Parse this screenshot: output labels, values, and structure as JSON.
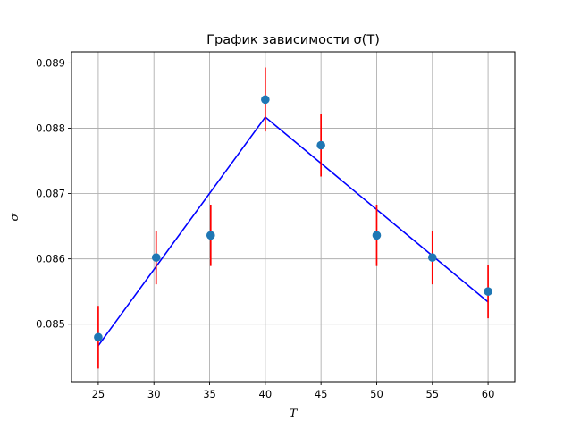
{
  "chart_data": {
    "type": "scatter",
    "title": "График зависимости σ(T)",
    "xlabel": "T",
    "ylabel": "σ",
    "xlim": [
      22.6,
      62.4
    ],
    "ylim": [
      0.08412,
      0.08917
    ],
    "x_ticks": [
      25,
      30,
      35,
      40,
      45,
      50,
      55,
      60
    ],
    "x_tick_labels": [
      "25",
      "30",
      "35",
      "40",
      "45",
      "50",
      "55",
      "60"
    ],
    "y_ticks": [
      0.085,
      0.086,
      0.087,
      0.088,
      0.089
    ],
    "y_tick_labels": [
      "0.085",
      "0.086",
      "0.087",
      "0.088",
      "0.089"
    ],
    "grid": true,
    "series": [
      {
        "kind": "points_with_errorbars",
        "marker_color": "#1f77b4",
        "errorbar_color": "#ff0000",
        "points": [
          {
            "x": 25,
            "y": 0.0848,
            "yerr": 0.00048
          },
          {
            "x": 30.2,
            "y": 0.08602,
            "yerr": 0.00041
          },
          {
            "x": 35.1,
            "y": 0.08636,
            "yerr": 0.00047
          },
          {
            "x": 40,
            "y": 0.08844,
            "yerr": 0.00049
          },
          {
            "x": 45,
            "y": 0.08774,
            "yerr": 0.00048
          },
          {
            "x": 50,
            "y": 0.08636,
            "yerr": 0.00047
          },
          {
            "x": 55,
            "y": 0.08602,
            "yerr": 0.00041
          },
          {
            "x": 60,
            "y": 0.0855,
            "yerr": 0.00041
          }
        ]
      },
      {
        "kind": "fit_line",
        "color": "#0000ff",
        "points": [
          {
            "x": 25,
            "y": 0.08467
          },
          {
            "x": 40,
            "y": 0.08817
          },
          {
            "x": 60,
            "y": 0.08534
          }
        ]
      }
    ]
  }
}
